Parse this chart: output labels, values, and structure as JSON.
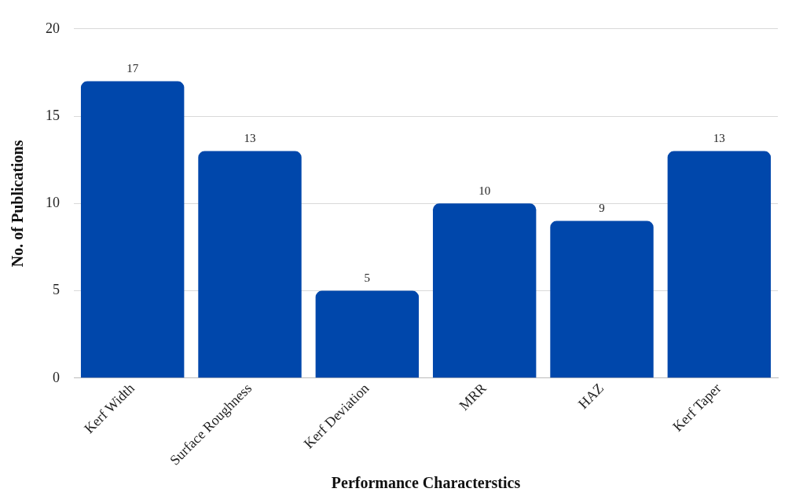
{
  "chart_data": {
    "type": "bar",
    "xlabel": "Performance Characterstics",
    "ylabel": "No. of Publications",
    "categories": [
      "Kerf Width",
      "Surface Roughness",
      "Kerf Deviation",
      "MRR",
      "HAZ",
      "Kerf Taper"
    ],
    "values": [
      17,
      13,
      5,
      10,
      9,
      13
    ],
    "color": "#0047ab",
    "ylim": [
      0,
      20
    ],
    "yticks": [
      0,
      5,
      10,
      15,
      20
    ],
    "grid": "y",
    "data_labels": true,
    "legend": false
  }
}
